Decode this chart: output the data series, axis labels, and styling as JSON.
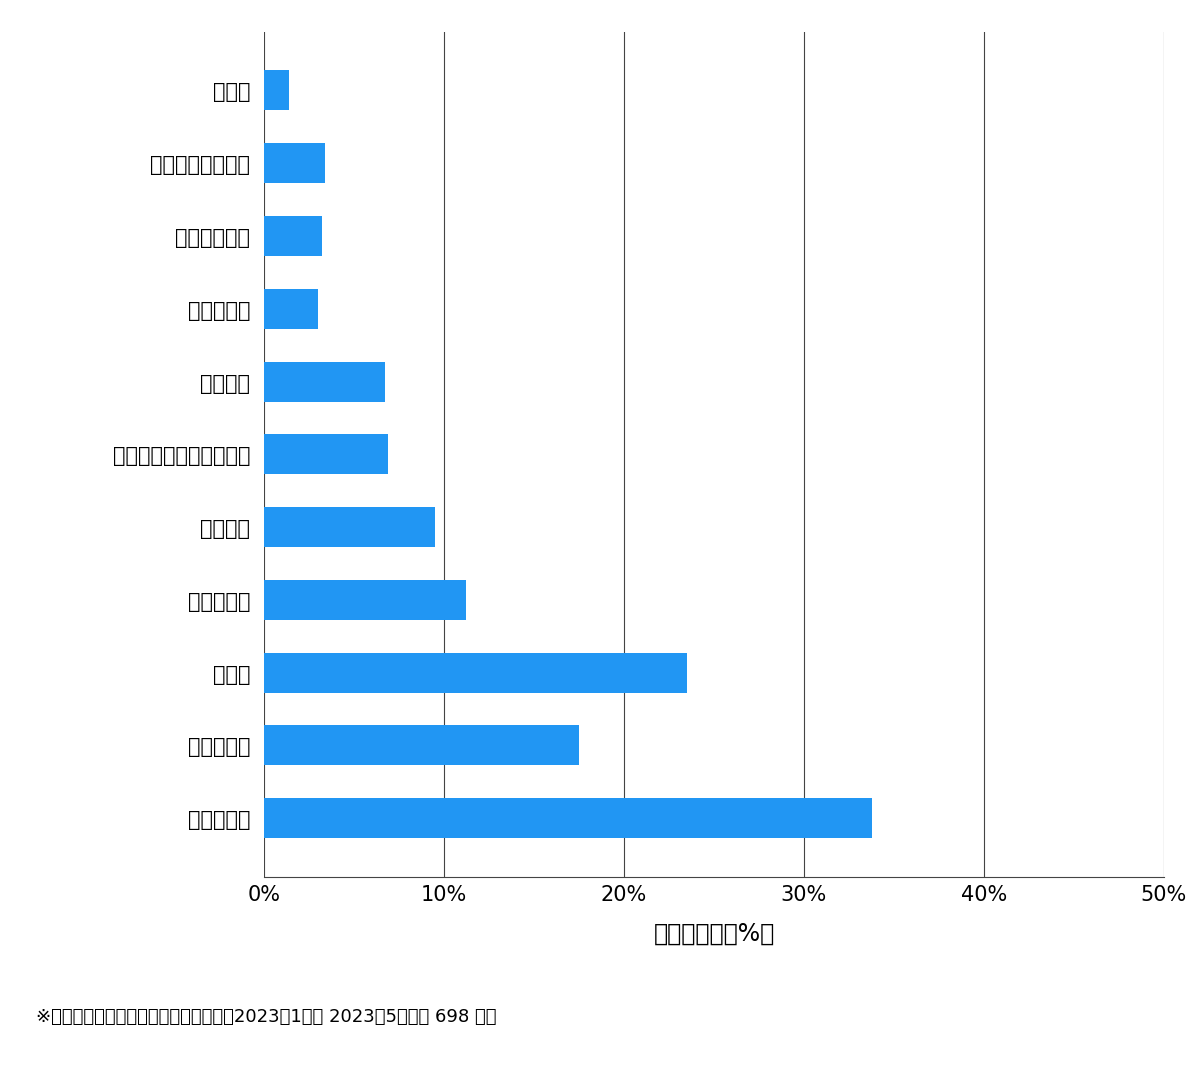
{
  "categories": [
    "その他",
    "スーツケース開鍵",
    "その他鍵作成",
    "玄関鍵作成",
    "金庫開鍵",
    "イモビ付き国産車鍵作成",
    "車鍵作成",
    "その他開鍵",
    "車開鍵",
    "玄関鍵交換",
    "玄関鍵開鍵"
  ],
  "values": [
    1.4,
    3.4,
    3.2,
    3.0,
    6.7,
    6.9,
    9.5,
    11.2,
    23.5,
    17.5,
    33.8
  ],
  "bar_color": "#2196F3",
  "xlabel": "件数の割合（%）",
  "xlim": [
    0,
    50
  ],
  "xticks": [
    0,
    10,
    20,
    30,
    40,
    50
  ],
  "xticklabels": [
    "0%",
    "10%",
    "20%",
    "30%",
    "40%",
    "50%"
  ],
  "footnote": "※弊社受付の案件を対象に集計（期間：2023年1月～ 2023年5月、訜 698 件）",
  "background_color": "#ffffff",
  "bar_height": 0.55,
  "grid_color": "#444444",
  "grid_linewidth": 0.8,
  "tick_fontsize": 15,
  "xlabel_fontsize": 17,
  "footnote_fontsize": 13
}
